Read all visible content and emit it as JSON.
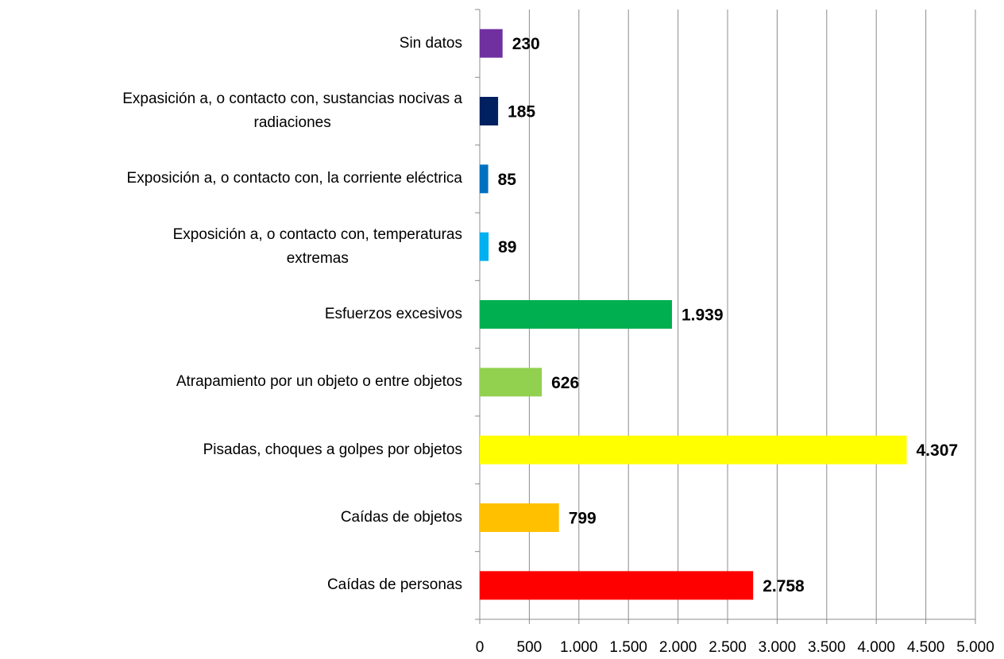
{
  "chart_data": {
    "type": "barh",
    "categories": [
      "Sin datos",
      "Expasición a, o contacto con, sustancias nocivas a\nradiaciones",
      "Exposición a, o contacto con, la corriente eléctrica",
      "Exposición a, o contacto con, temperaturas\nextremas",
      "Esfuerzos excesivos",
      "Atrapamiento por un objeto o entre objetos",
      "Pisadas, choques a golpes por objetos",
      "Caídas de objetos",
      "Caídas de personas"
    ],
    "values": [
      230,
      185,
      85,
      89,
      1939,
      626,
      4307,
      799,
      2758
    ],
    "value_labels": [
      "230",
      "185",
      "85",
      "89",
      "1.939",
      "626",
      "4.307",
      "799",
      "2.758"
    ],
    "colors": [
      "#7030a0",
      "#002060",
      "#0070c0",
      "#00b0f0",
      "#00b050",
      "#92d050",
      "#ffff00",
      "#ffc000",
      "#ff0000"
    ],
    "xlim": [
      0,
      5000
    ],
    "xticks": [
      0,
      500,
      {
        "value": 1000,
        "label": "1.000"
      },
      {
        "value": 1500,
        "label": "1.500"
      },
      {
        "value": 2000,
        "label": "2.000"
      },
      {
        "value": 2500,
        "label": "2.500"
      },
      {
        "value": 3000,
        "label": "3.000"
      },
      {
        "value": 3500,
        "label": "3.500"
      },
      {
        "value": 4000,
        "label": "4.000"
      },
      {
        "value": 4500,
        "label": "4.500"
      },
      {
        "value": 5000,
        "label": "5.000"
      }
    ],
    "grid": true
  }
}
